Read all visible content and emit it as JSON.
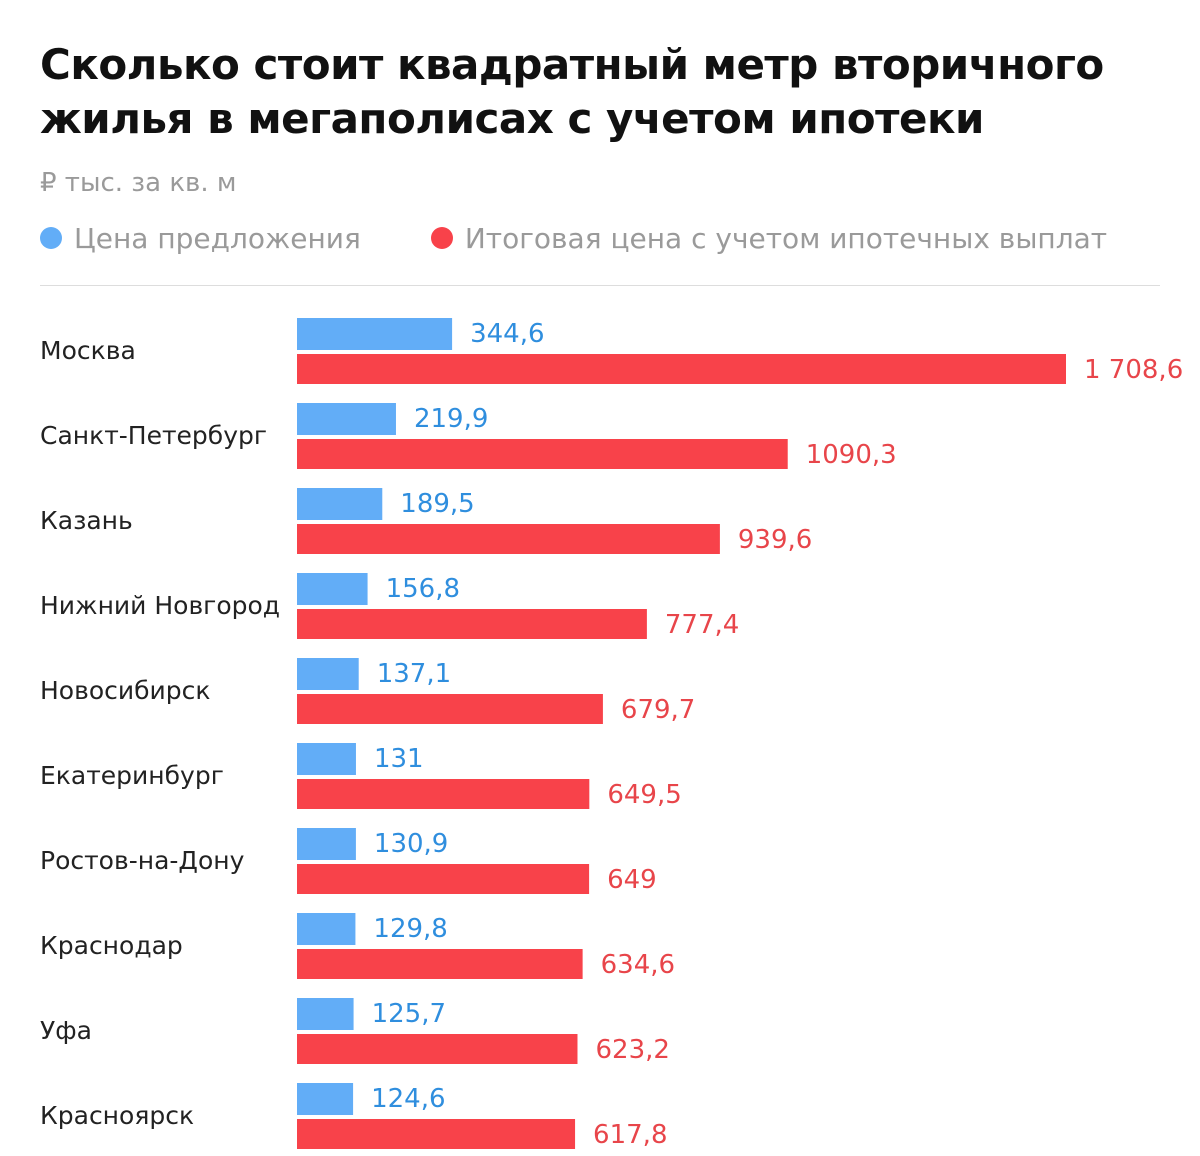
{
  "title": "Сколько стоит квадратный метр вторичного жилья в мегаполисах с учетом ипотеки",
  "subtitle": "₽ тыс. за кв. м",
  "colors": {
    "offer": "#62adf7",
    "offer_label": "#2f8ede",
    "total": "#f8424a",
    "total_label": "#e8454a"
  },
  "legend": {
    "offer_label": "Цена предложения",
    "total_label": "Итоговая цена с учетом ипотечных выплат"
  },
  "chart_data": {
    "type": "bar",
    "orientation": "horizontal",
    "categories": [
      "Москва",
      "Санкт-Петербург",
      "Казань",
      "Нижний Новгород",
      "Новосибирск",
      "Екатеринбург",
      "Ростов-на-Дону",
      "Краснодар",
      "Уфа",
      "Красноярск"
    ],
    "series": [
      {
        "name": "Цена предложения",
        "values": [
          344.6,
          219.9,
          189.5,
          156.8,
          137.1,
          131,
          130.9,
          129.8,
          125.7,
          124.6
        ],
        "labels": [
          "344,6",
          "219,9",
          "189,5",
          "156,8",
          "137,1",
          "131",
          "130,9",
          "129,8",
          "125,7",
          "124,6"
        ]
      },
      {
        "name": "Итоговая цена с учетом ипотечных выплат",
        "values": [
          1708.6,
          1090.3,
          939.6,
          777.4,
          679.7,
          649.5,
          649,
          634.6,
          623.2,
          617.8
        ],
        "labels": [
          "1 708,6",
          "1090,3",
          "939,6",
          "777,4",
          "679,7",
          "649,5",
          "649",
          "634,6",
          "623,2",
          "617,8"
        ]
      }
    ],
    "title": "Сколько стоит квадратный метр вторичного жилья в мегаполисах с учетом ипотеки",
    "ylabel": "₽ тыс. за кв. м",
    "xlim": [
      0,
      1708.6
    ],
    "grid": false,
    "legend_position": "top-left"
  }
}
